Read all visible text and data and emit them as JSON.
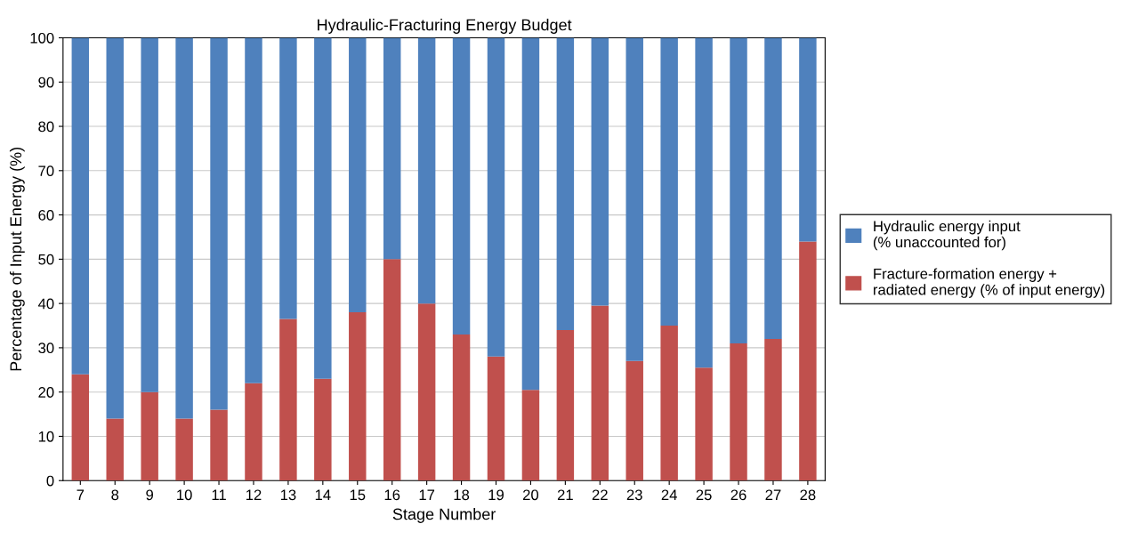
{
  "chart_data": {
    "type": "bar",
    "title": "Hydraulic-Fracturing Energy Budget",
    "xlabel": "Stage Number",
    "ylabel": "Percentage of Input Energy (%)",
    "categories": [
      "7",
      "8",
      "9",
      "10",
      "11",
      "12",
      "13",
      "14",
      "15",
      "16",
      "17",
      "18",
      "19",
      "20",
      "21",
      "22",
      "23",
      "24",
      "25",
      "26",
      "27",
      "28"
    ],
    "stacked": true,
    "series": [
      {
        "name": "Fracture-formation energy +\nradiated energy (% of input energy)",
        "color": "#c0504d",
        "values": [
          24,
          14,
          20,
          14,
          16,
          22,
          36.5,
          23,
          38,
          50,
          40,
          33,
          28,
          20.5,
          34,
          39.5,
          27,
          35,
          25.5,
          31,
          32,
          54
        ]
      },
      {
        "name": "Hydraulic energy input\n(% unaccounted for)",
        "color": "#4f81bd",
        "values": [
          76,
          86,
          80,
          86,
          84,
          78,
          63.5,
          77,
          62,
          50,
          60,
          67,
          72,
          79.5,
          66,
          60.5,
          73,
          65,
          74.5,
          69,
          68,
          46
        ]
      }
    ],
    "ylim": [
      0,
      100
    ],
    "yticks": [
      0,
      10,
      20,
      30,
      40,
      50,
      60,
      70,
      80,
      90,
      100
    ],
    "grid": "y",
    "legend": "right"
  }
}
